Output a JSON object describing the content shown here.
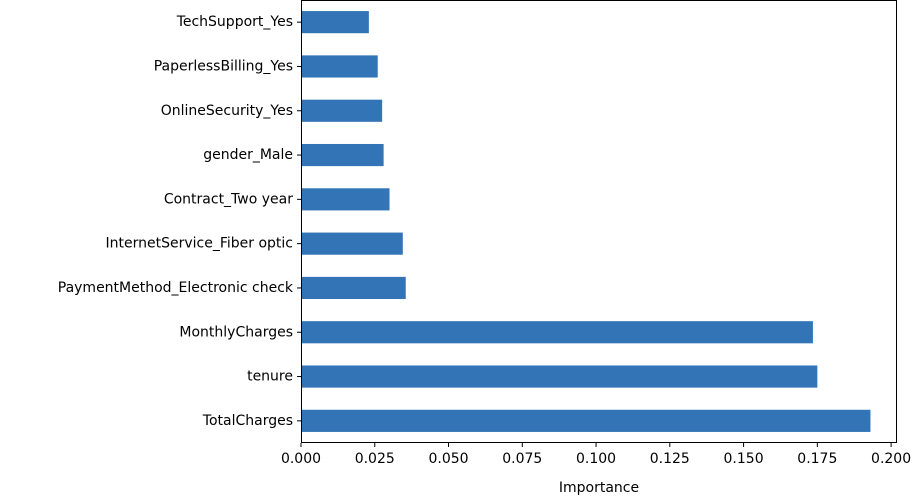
{
  "chart_data": {
    "type": "bar",
    "orientation": "horizontal",
    "categories": [
      "TotalCharges",
      "tenure",
      "MonthlyCharges",
      "PaymentMethod_Electronic check",
      "InternetService_Fiber optic",
      "Contract_Two year",
      "gender_Male",
      "OnlineSecurity_Yes",
      "PaperlessBilling_Yes",
      "TechSupport_Yes"
    ],
    "values": [
      0.193,
      0.175,
      0.1735,
      0.0355,
      0.0345,
      0.03,
      0.028,
      0.0275,
      0.026,
      0.023
    ],
    "title": "",
    "xlabel": "Importance",
    "ylabel": "",
    "xlim": [
      0,
      0.202
    ],
    "xticks": [
      0.0,
      0.025,
      0.05,
      0.075,
      0.1,
      0.125,
      0.15,
      0.175,
      0.2
    ],
    "xtick_labels": [
      "0.000",
      "0.025",
      "0.050",
      "0.075",
      "0.100",
      "0.125",
      "0.150",
      "0.175",
      "0.200"
    ],
    "grid": false,
    "bar_color": "#3274b5"
  }
}
